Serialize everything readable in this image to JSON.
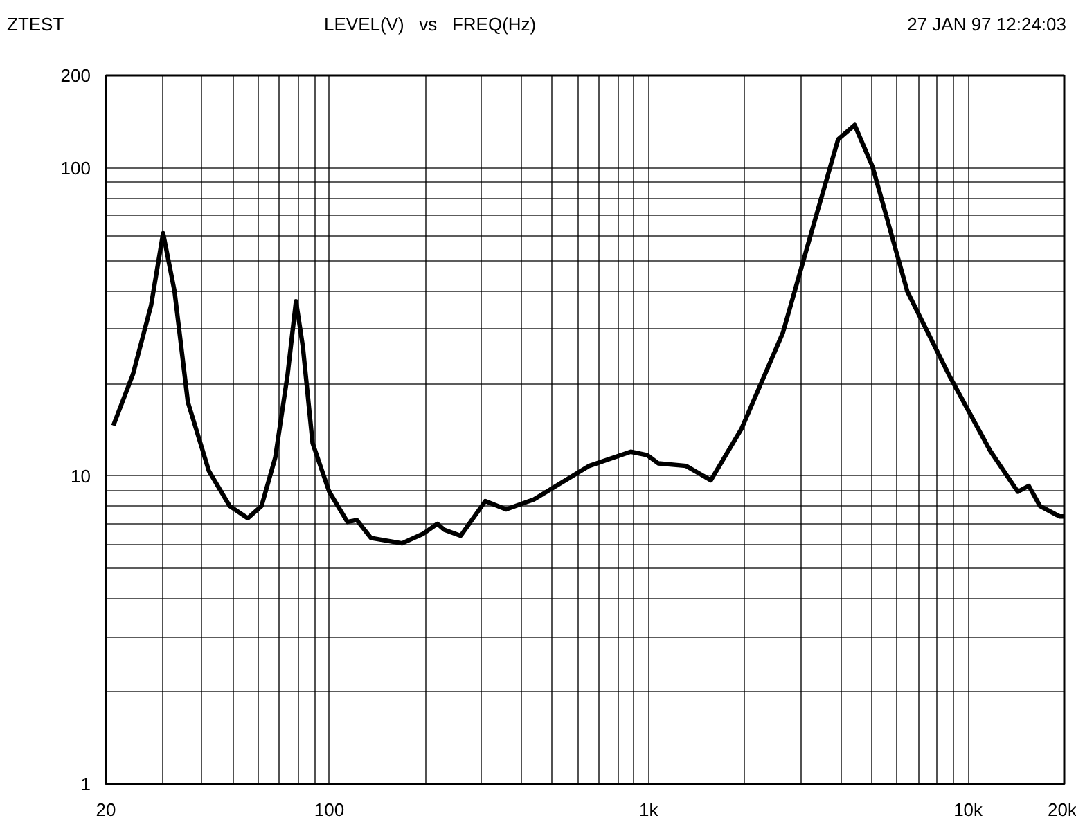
{
  "chart_data": {
    "type": "line",
    "title": "ZTEST",
    "annotations": [
      "LEVEL(V)   vs   FREQ(Hz)",
      "27 JAN 97 12:24:03"
    ],
    "log": "xy",
    "grid": true,
    "marker": "none",
    "line_style": "solid",
    "xlim": [
      20,
      20000
    ],
    "ylim": [
      1,
      200
    ],
    "xticks": [
      20,
      {
        "value": 30,
        "label": null
      },
      {
        "value": 40,
        "label": null
      },
      {
        "value": 50,
        "label": null
      },
      {
        "value": 60,
        "label": null
      },
      {
        "value": 70,
        "label": null
      },
      {
        "value": 80,
        "label": null
      },
      {
        "value": 90,
        "label": null
      },
      100,
      {
        "value": 200,
        "label": null
      },
      {
        "value": 300,
        "label": null
      },
      {
        "value": 400,
        "label": null
      },
      {
        "value": 500,
        "label": null
      },
      {
        "value": 600,
        "label": null
      },
      {
        "value": 700,
        "label": null
      },
      {
        "value": 800,
        "label": null
      },
      {
        "value": 900,
        "label": null
      },
      {
        "value": 1000,
        "label": "1k"
      },
      {
        "value": 2000,
        "label": null
      },
      {
        "value": 3000,
        "label": null
      },
      {
        "value": 4000,
        "label": null
      },
      {
        "value": 5000,
        "label": null
      },
      {
        "value": 6000,
        "label": null
      },
      {
        "value": 7000,
        "label": null
      },
      {
        "value": 8000,
        "label": null
      },
      {
        "value": 9000,
        "label": null
      },
      {
        "value": 10000,
        "label": "10k"
      },
      {
        "value": 20000,
        "label": "20k"
      }
    ],
    "yticks": [
      1,
      {
        "value": 2,
        "label": null
      },
      {
        "value": 3,
        "label": null
      },
      {
        "value": 4,
        "label": null
      },
      {
        "value": 5,
        "label": null
      },
      {
        "value": 6,
        "label": null
      },
      {
        "value": 7,
        "label": null
      },
      {
        "value": 8,
        "label": null
      },
      {
        "value": 9,
        "label": null
      },
      10,
      {
        "value": 20,
        "label": null
      },
      {
        "value": 30,
        "label": null
      },
      {
        "value": 40,
        "label": null
      },
      {
        "value": 50,
        "label": null
      },
      {
        "value": 60,
        "label": null
      },
      {
        "value": 70,
        "label": null
      },
      {
        "value": 80,
        "label": null
      },
      {
        "value": 90,
        "label": null
      },
      100,
      200
    ],
    "series": [
      {
        "color": "#000000",
        "x": [
          21.1,
          24.3,
          27.7,
          30.2,
          32.8,
          36.1,
          42,
          48.8,
          55.6,
          61.4,
          67.8,
          74.1,
          78.7,
          82.7,
          88.7,
          100,
          114,
          122,
          135,
          169,
          197,
          218,
          229,
          258,
          308,
          358,
          437,
          652,
          879,
          990,
          1072,
          1309,
          1566,
          1950,
          2632,
          3208,
          3919,
          4416,
          5024,
          6453,
          8692,
          11720,
          14310,
          15490,
          16790,
          19320,
          20000
        ],
        "values": [
          14.6,
          21.4,
          35.9,
          61.5,
          39.8,
          17.4,
          10.4,
          8.0,
          7.3,
          8.0,
          11.5,
          21.4,
          37.0,
          26.3,
          12.8,
          8.9,
          7.1,
          7.2,
          6.3,
          6.05,
          6.5,
          7.0,
          6.7,
          6.4,
          8.3,
          7.8,
          8.4,
          10.8,
          12.0,
          11.7,
          11.0,
          10.8,
          9.7,
          14.2,
          29.2,
          60.2,
          124,
          138,
          101,
          39.8,
          21.4,
          12.1,
          8.9,
          9.3,
          8.0,
          7.4,
          7.4
        ]
      }
    ]
  }
}
